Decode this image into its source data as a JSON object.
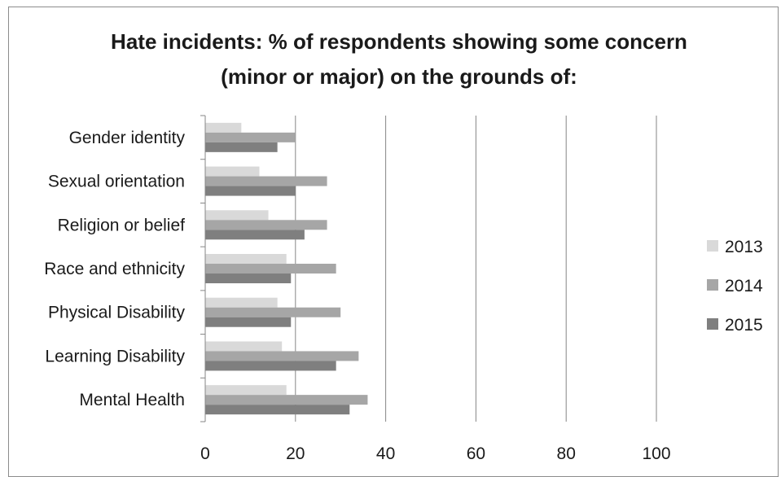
{
  "chart_data": {
    "type": "bar",
    "orientation": "horizontal",
    "title_lines": [
      "Hate incidents: % of respondents showing some concern",
      "(minor or major) on the grounds of:"
    ],
    "categories": [
      "Gender identity",
      "Sexual orientation",
      "Religion or belief",
      "Race and ethnicity",
      "Physical Disability",
      "Learning Disability",
      "Mental Health"
    ],
    "series": [
      {
        "name": "2013",
        "color": "#d9d9d9",
        "values": [
          8,
          12,
          14,
          18,
          16,
          17,
          18
        ]
      },
      {
        "name": "2014",
        "color": "#a6a6a6",
        "values": [
          20,
          27,
          27,
          29,
          30,
          34,
          36
        ]
      },
      {
        "name": "2015",
        "color": "#7f7f7f",
        "values": [
          16,
          20,
          22,
          19,
          19,
          29,
          32
        ]
      }
    ],
    "xlim": [
      0,
      100
    ],
    "xticks": [
      "0",
      "20",
      "40",
      "60",
      "80",
      "100"
    ],
    "grid": "vertical",
    "legend_position": "right"
  }
}
